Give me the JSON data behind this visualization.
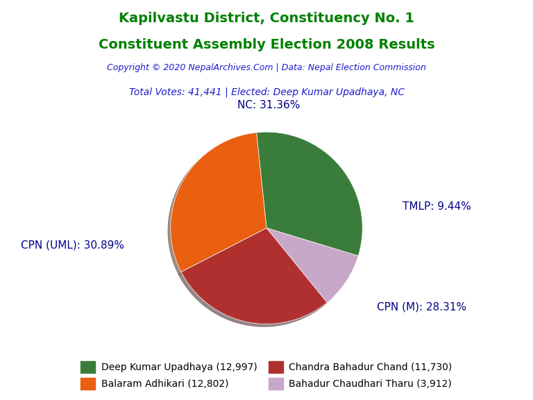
{
  "title_line1": "Kapilvastu District, Constituency No. 1",
  "title_line2": "Constituent Assembly Election 2008 Results",
  "title_color": "#008000",
  "copyright_text": "Copyright © 2020 NepalArchives.Com | Data: Nepal Election Commission",
  "copyright_color": "#1a1acd",
  "total_votes_text": "Total Votes: 41,441 | Elected: Deep Kumar Upadhaya, NC",
  "total_votes_color": "#1a1acd",
  "slices": [
    {
      "label": "NC",
      "pct": 31.36,
      "votes": 12997,
      "color": "#3a7d3a",
      "candidate": "Deep Kumar Upadhaya"
    },
    {
      "label": "TMLP",
      "pct": 9.44,
      "votes": 3912,
      "color": "#c8a8c8",
      "candidate": "Bahadur Chaudhari Tharu"
    },
    {
      "label": "CPN (M)",
      "pct": 28.31,
      "votes": 11730,
      "color": "#b03030",
      "candidate": "Chandra Bahadur Chand"
    },
    {
      "label": "CPN (UML)",
      "pct": 30.89,
      "votes": 12802,
      "color": "#e86010",
      "candidate": "Balaram Adhikari"
    }
  ],
  "label_color": "#00008B",
  "label_fontsize": 11,
  "background_color": "#ffffff",
  "legend_fontsize": 10,
  "pie_startangle": 96,
  "shadow": true
}
